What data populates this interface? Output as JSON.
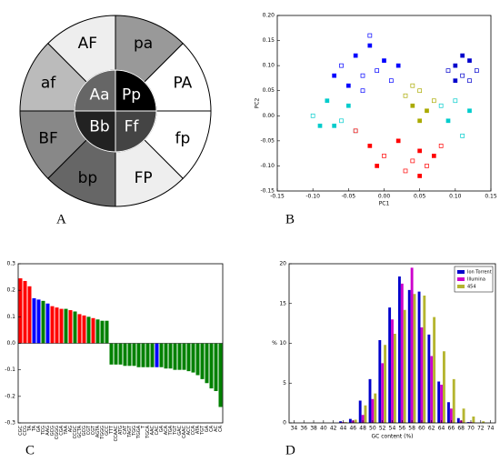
{
  "panel_labels": [
    "A",
    "B",
    "C",
    "D"
  ],
  "diagram": {
    "outer": [
      "AF",
      "pa",
      "PA",
      "fp",
      "FP",
      "bp",
      "BF",
      "af"
    ],
    "outer_colors": [
      "#eeeeee",
      "#999999",
      "#ffffff",
      "#ffffff",
      "#eeeeee",
      "#666666",
      "#888888",
      "#bbbbbb"
    ],
    "inner": [
      "Aa",
      "Pp",
      "Ff",
      "Bb"
    ],
    "inner_colors": [
      "#666666",
      "#000000",
      "#444444",
      "#222222"
    ]
  },
  "chart_data": [
    {
      "type": "scatter",
      "x_label": "PC1",
      "y_label": "PC2",
      "xlim": [
        -0.15,
        0.15
      ],
      "ylim": [
        -0.15,
        0.2
      ],
      "xticks": [
        {
          "value": -0.15,
          "label": "-0.15"
        },
        {
          "value": -0.1,
          "label": "-0.10"
        },
        {
          "value": -0.05,
          "label": "-0.05"
        },
        {
          "value": 0,
          "label": "0.00"
        },
        {
          "value": 0.05,
          "label": "0.05"
        },
        {
          "value": 0.1,
          "label": "0.10"
        },
        {
          "value": 0.15,
          "label": "0.15"
        }
      ],
      "yticks": [
        {
          "value": -0.15,
          "label": "-0.15"
        },
        {
          "value": -0.1,
          "label": "-0.10"
        },
        {
          "value": -0.05,
          "label": "-0.05"
        },
        {
          "value": 0,
          "label": "0.00"
        },
        {
          "value": 0.05,
          "label": "0.05"
        },
        {
          "value": 0.1,
          "label": "0.10"
        },
        {
          "value": 0.15,
          "label": "0.15"
        },
        {
          "value": 0.2,
          "label": "0.20"
        }
      ],
      "series": [
        {
          "color": "#00cccc",
          "x": [
            -0.1,
            -0.08,
            -0.06,
            -0.05,
            -0.04,
            -0.07,
            0.08,
            0.09,
            0.1,
            0.12,
            0.11,
            -0.09
          ],
          "values": [
            0.0,
            0.03,
            -0.01,
            0.02,
            -0.03,
            -0.02,
            0.02,
            -0.01,
            0.03,
            0.01,
            -0.04,
            -0.02
          ]
        },
        {
          "color": "#0000ff",
          "x": [
            -0.06,
            -0.04,
            -0.03,
            -0.02,
            -0.01,
            0.0,
            0.01,
            -0.05,
            -0.03,
            0.02,
            -0.02,
            -0.07
          ],
          "values": [
            0.1,
            0.12,
            0.08,
            0.14,
            0.09,
            0.11,
            0.07,
            0.06,
            0.05,
            0.1,
            0.16,
            0.08
          ]
        },
        {
          "color": "#ff0000",
          "x": [
            -0.04,
            -0.02,
            0.0,
            0.02,
            0.04,
            0.05,
            0.06,
            0.07,
            0.03,
            -0.01,
            0.08,
            0.05
          ],
          "values": [
            -0.03,
            -0.06,
            -0.08,
            -0.05,
            -0.09,
            -0.07,
            -0.1,
            -0.08,
            -0.11,
            -0.1,
            -0.06,
            -0.12
          ]
        },
        {
          "color": "#aaaa00",
          "x": [
            0.03,
            0.04,
            0.05,
            0.06,
            0.07,
            0.05,
            0.04
          ],
          "values": [
            0.04,
            0.02,
            0.05,
            0.01,
            0.03,
            -0.01,
            0.06
          ]
        },
        {
          "color": "#0000cc",
          "x": [
            0.09,
            0.1,
            0.11,
            0.12,
            0.13,
            0.1,
            0.12,
            0.11
          ],
          "values": [
            0.09,
            0.1,
            0.08,
            0.11,
            0.09,
            0.07,
            0.07,
            0.12
          ]
        }
      ]
    },
    {
      "type": "bar",
      "ylim": [
        -0.3,
        0.3
      ],
      "yticks": [
        {
          "value": -0.3,
          "label": "-0.3"
        },
        {
          "value": -0.2,
          "label": "-0.2"
        },
        {
          "value": -0.1,
          "label": "-0.1"
        },
        {
          "value": 0,
          "label": "0.0"
        },
        {
          "value": 0.1,
          "label": "0.1"
        },
        {
          "value": 0.2,
          "label": "0.2"
        },
        {
          "value": 0.3,
          "label": "0.3"
        }
      ],
      "categories": [
        "CGC",
        "CCG",
        "TA",
        "TA",
        "GA",
        "TCG",
        "AAG",
        "GCG",
        "CGGG",
        "CGA",
        "TAA",
        "AG",
        "CCGC",
        "GCTA",
        "GCG",
        "CGT",
        "CGT",
        "AGTA",
        "TGGG",
        "GCC",
        "TTT",
        "CCAAC",
        "ATG",
        "CAT",
        "TAGT",
        "TGG",
        "TGGA",
        "T",
        "TGCA",
        "AAC",
        "CAC",
        "GA",
        "ACA",
        "TGA",
        "TGT",
        "GAC",
        "CAAC",
        "ACC",
        "CCA",
        "ATA",
        "TGT",
        "GA",
        "CA",
        "AC",
        "CA"
      ],
      "values": [
        0.245,
        0.235,
        0.215,
        0.17,
        0.165,
        0.16,
        0.15,
        0.14,
        0.135,
        0.13,
        0.13,
        0.125,
        0.12,
        0.11,
        0.105,
        0.1,
        0.095,
        0.09,
        0.085,
        0.085,
        -0.08,
        -0.08,
        -0.08,
        -0.085,
        -0.085,
        -0.085,
        -0.09,
        -0.09,
        -0.09,
        -0.09,
        -0.09,
        -0.09,
        -0.095,
        -0.095,
        -0.1,
        -0.1,
        -0.1,
        -0.105,
        -0.11,
        -0.12,
        -0.135,
        -0.15,
        -0.17,
        -0.18,
        -0.24
      ],
      "colors": [
        "#ff0000",
        "#ff0000",
        "#ff0000",
        "#0000ff",
        "#0000ff",
        "#008000",
        "#0000ff",
        "#ff0000",
        "#ff0000",
        "#ff0000",
        "#008000",
        "#ff0000",
        "#008000",
        "#ff0000",
        "#ff0000",
        "#008000",
        "#ff0000",
        "#008000",
        "#008000",
        "#008000",
        "#008000",
        "#008000",
        "#008000",
        "#008000",
        "#008000",
        "#008000",
        "#008000",
        "#008000",
        "#008000",
        "#008000",
        "#0000ff",
        "#008000",
        "#008000",
        "#008000",
        "#008000",
        "#008000",
        "#008000",
        "#008000",
        "#008000",
        "#008000",
        "#008000",
        "#008000",
        "#008000",
        "#008000",
        "#008000"
      ]
    },
    {
      "type": "grouped_bar",
      "x_label": "GC content (%)",
      "y_label": "%",
      "legend": "upper right",
      "ylim": [
        0,
        20
      ],
      "yticks": [
        0,
        5,
        10,
        15,
        20
      ],
      "categories": [
        "34",
        "36",
        "38",
        "40",
        "42",
        "44",
        "46",
        "48",
        "50",
        "52",
        "54",
        "56",
        "58",
        "60",
        "62",
        "64",
        "66",
        "68",
        "70",
        "72",
        "74"
      ],
      "series": [
        {
          "name": "Ion Torrent",
          "color": "#0000cc",
          "values": [
            0,
            0,
            0,
            0,
            0,
            0.2,
            0.5,
            2.8,
            5.5,
            10.4,
            14.5,
            18.4,
            16.7,
            16.5,
            11.1,
            5.2,
            2.6,
            0.6,
            0.1,
            0,
            0
          ]
        },
        {
          "name": "Illumina",
          "color": "#cc00cc",
          "values": [
            0,
            0,
            0,
            0,
            0,
            0.1,
            0.3,
            1.0,
            3.0,
            7.5,
            13.0,
            17.5,
            19.5,
            12.0,
            8.4,
            4.8,
            1.8,
            0.3,
            0.1,
            0,
            0
          ]
        },
        {
          "name": "454",
          "color": "#b5b530",
          "values": [
            0,
            0,
            0,
            0,
            0,
            0.1,
            0.4,
            2.2,
            3.7,
            9.8,
            11.2,
            14.2,
            16.2,
            16.0,
            13.3,
            9.0,
            5.5,
            1.8,
            0.8,
            0.2,
            0
          ]
        }
      ]
    }
  ]
}
